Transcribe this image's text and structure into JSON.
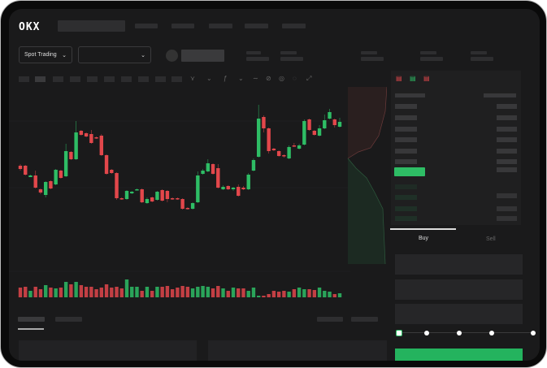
{
  "brand": {
    "logo": "OKX"
  },
  "header": {
    "nav_items": [
      "",
      "",
      "",
      "",
      ""
    ]
  },
  "market": {
    "mode_selector": "Spot Trading",
    "pair_selector": ""
  },
  "chart_data": {
    "type": "candlestick",
    "title": "",
    "xlabel": "",
    "ylabel": "",
    "colors": {
      "up": "#2ebd65",
      "down": "#e2474b"
    },
    "candles": [
      [
        97,
        93,
        99,
        91
      ],
      [
        97,
        86,
        98,
        85
      ],
      [
        83,
        85,
        86,
        83
      ],
      [
        85,
        70,
        91,
        69
      ],
      [
        68,
        64,
        69,
        62
      ],
      [
        61,
        77,
        78,
        58
      ],
      [
        78,
        69,
        79,
        68
      ],
      [
        74,
        92,
        93,
        73
      ],
      [
        91,
        82,
        92,
        81
      ],
      [
        84,
        115,
        124,
        83
      ],
      [
        114,
        105,
        115,
        104
      ],
      [
        105,
        138,
        152,
        104
      ],
      [
        140,
        135,
        141,
        134
      ],
      [
        137,
        133,
        138,
        132
      ],
      [
        136,
        125,
        141,
        124
      ],
      [
        132,
        131,
        133,
        130
      ],
      [
        134,
        110,
        136,
        109
      ],
      [
        110,
        87,
        111,
        86
      ],
      [
        92,
        88,
        93,
        87
      ],
      [
        88,
        57,
        89,
        55
      ],
      [
        57,
        56,
        58,
        55
      ],
      [
        56,
        66,
        67,
        55
      ],
      [
        63,
        65,
        66,
        62
      ],
      [
        68,
        68,
        69,
        67
      ],
      [
        68,
        52,
        69,
        51
      ],
      [
        51,
        56,
        58,
        50
      ],
      [
        58,
        53,
        59,
        52
      ],
      [
        55,
        65,
        66,
        54
      ],
      [
        67,
        54,
        68,
        53
      ],
      [
        66,
        56,
        67,
        52
      ],
      [
        57,
        56,
        58,
        55
      ],
      [
        57,
        56,
        58,
        55
      ],
      [
        56,
        44,
        57,
        43
      ],
      [
        45,
        44,
        46,
        43
      ],
      [
        44,
        51,
        52,
        43
      ],
      [
        52,
        85,
        90,
        51
      ],
      [
        87,
        91,
        93,
        86
      ],
      [
        90,
        100,
        105,
        89
      ],
      [
        99,
        87,
        100,
        86
      ],
      [
        94,
        70,
        99,
        69
      ],
      [
        68,
        71,
        73,
        67
      ],
      [
        72,
        68,
        73,
        67
      ],
      [
        68,
        70,
        71,
        66
      ],
      [
        71,
        60,
        74,
        59
      ],
      [
        70,
        68,
        72,
        67
      ],
      [
        68,
        86,
        88,
        67
      ],
      [
        91,
        104,
        106,
        90
      ],
      [
        108,
        155,
        172,
        107
      ],
      [
        157,
        143,
        159,
        138
      ],
      [
        143,
        115,
        144,
        112
      ],
      [
        118,
        116,
        119,
        115
      ],
      [
        115,
        109,
        116,
        108
      ],
      [
        110,
        109,
        111,
        107
      ],
      [
        106,
        120,
        122,
        105
      ],
      [
        122,
        121,
        125,
        120
      ],
      [
        118,
        122,
        124,
        117
      ],
      [
        123,
        152,
        154,
        122
      ],
      [
        154,
        141,
        155,
        140
      ],
      [
        140,
        135,
        141,
        134
      ],
      [
        134,
        143,
        147,
        133
      ],
      [
        143,
        153,
        160,
        142
      ],
      [
        155,
        163,
        167,
        154
      ],
      [
        154,
        147,
        155,
        144
      ],
      [
        145,
        151,
        156,
        144
      ]
    ],
    "volumes": [
      12,
      13,
      8,
      13,
      10,
      15,
      12,
      11,
      12,
      19,
      16,
      19,
      15,
      13,
      13,
      10,
      12,
      16,
      12,
      13,
      11,
      22,
      13,
      13,
      8,
      13,
      8,
      13,
      13,
      14,
      10,
      12,
      14,
      13,
      11,
      13,
      14,
      13,
      11,
      14,
      11,
      8,
      12,
      11,
      11,
      8,
      12,
      2,
      2,
      4,
      8,
      7,
      8,
      7,
      10,
      12,
      10,
      10,
      9,
      12,
      8,
      7,
      4,
      5
    ]
  },
  "order_form": {
    "buy_tab": "Buy",
    "sell_tab": "Sell",
    "leverage_steps": 5,
    "leverage_selected": 0
  }
}
